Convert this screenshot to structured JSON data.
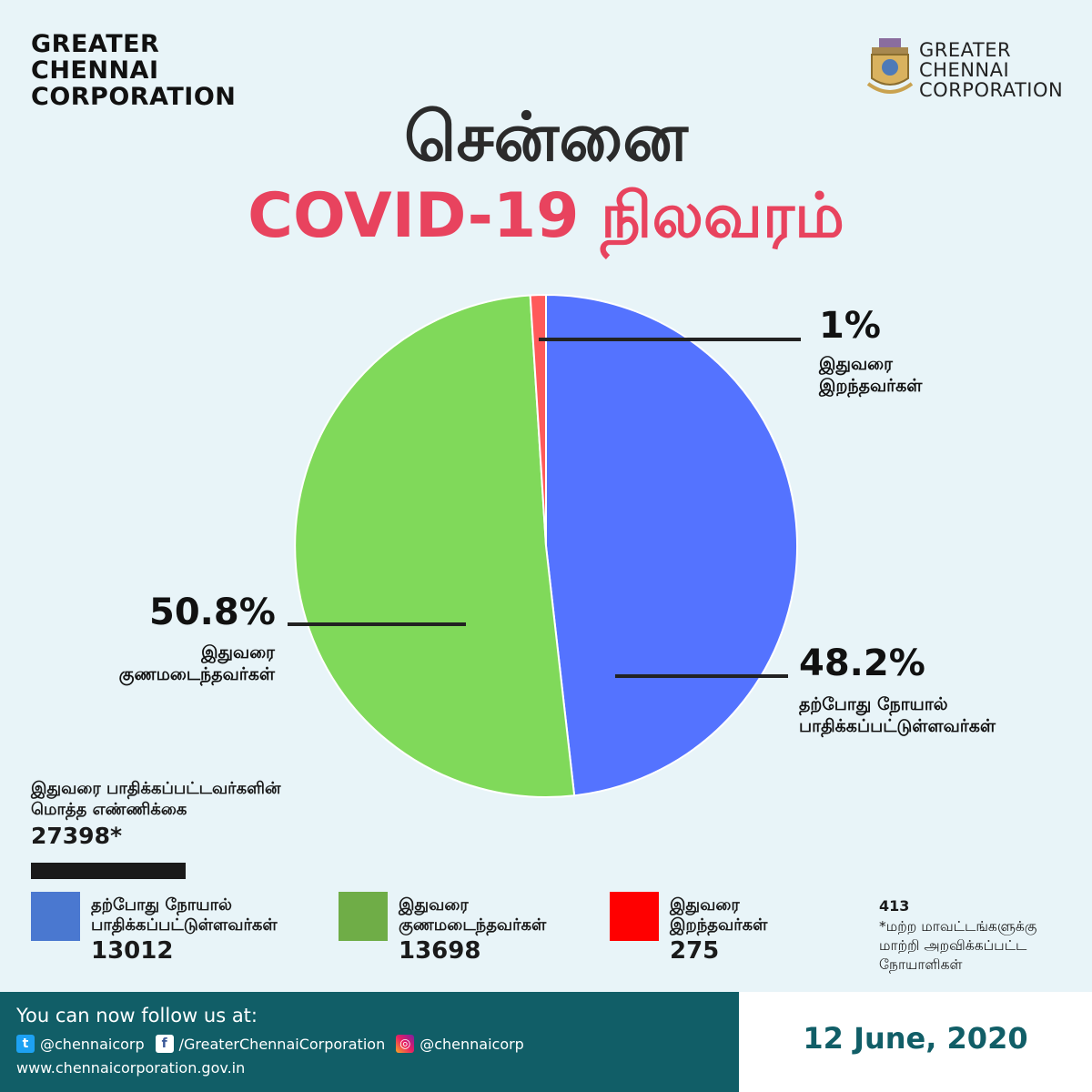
{
  "header": {
    "org_lines": [
      "GREATER",
      "CHENNAI",
      "CORPORATION"
    ],
    "logo_text_lines": [
      "GREATER",
      "CHENNAI",
      "CORPORATION"
    ],
    "title_main": "சென்னை",
    "title_sub": "COVID-19 நிலவரம்"
  },
  "chart_data": {
    "type": "pie",
    "slices": [
      {
        "name": "தற்போது நோயால் பாதிக்கப்பட்டுள்ளவர்கள்",
        "value": 48.2,
        "label": "48.2%",
        "color": "#5473ff"
      },
      {
        "name": "இதுவரை குணமடைந்தவர்கள்",
        "value": 50.8,
        "label": "50.8%",
        "color": "#80d95a"
      },
      {
        "name": "இதுவரை இறந்தவர்கள்",
        "value": 1,
        "label": "1%",
        "color": "#ff5a5a"
      }
    ],
    "annotations": {
      "active": {
        "pct": "48.2%",
        "lines": [
          "தற்போது நோயால்",
          "பாதிக்கப்பட்டுள்ளவர்கள்"
        ]
      },
      "recovered": {
        "pct": "50.8%",
        "lines": [
          "இதுவரை",
          "குணமடைந்தவர்கள்"
        ]
      },
      "deaths": {
        "pct": "1%",
        "lines": [
          "இதுவரை",
          "இறந்தவர்கள்"
        ]
      }
    }
  },
  "totals": {
    "label_lines": [
      "இதுவரை பாதிக்கப்பட்டவர்களின்",
      "மொத்த எண்ணிக்கை"
    ],
    "value": "27398*"
  },
  "legend": [
    {
      "lines": [
        "தற்போது நோயால்",
        "பாதிக்கப்பட்டுள்ளவர்கள்"
      ],
      "value": "13012",
      "color": "#4a78d0"
    },
    {
      "lines": [
        "இதுவரை",
        "குணமடைந்தவர்கள்"
      ],
      "value": "13698",
      "color": "#6fad47"
    },
    {
      "lines": [
        "இதுவரை",
        "இறந்தவர்கள்"
      ],
      "value": "275",
      "color": "#ff0000"
    }
  ],
  "note": {
    "count": "413",
    "lines": [
      "*மற்ற மாவட்டங்களுக்கு",
      "மாற்றி அறவிக்கப்பட்ட",
      "நோயாளிகள்"
    ]
  },
  "footer": {
    "follow": "You can now follow us at:",
    "twitter": "@chennaicorp",
    "facebook": "/GreaterChennaiCorporation",
    "instagram": "@chennaicorp",
    "website": "www.chennaicorporation.gov.in",
    "date": "12 June, 2020",
    "icons": [
      "twitter-icon",
      "facebook-icon",
      "instagram-icon"
    ]
  },
  "colors": {
    "background": "#e8f4f8",
    "title_accent": "#e8435e",
    "footer": "#115e67"
  }
}
